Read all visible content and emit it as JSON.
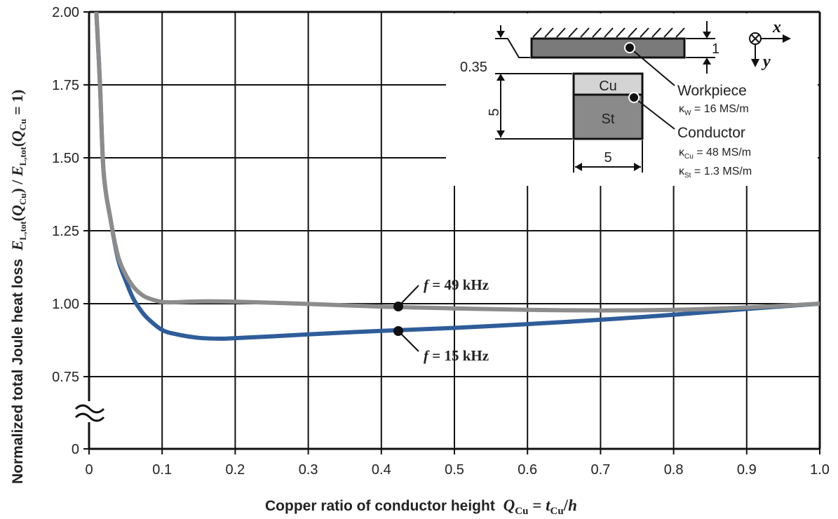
{
  "chart_data": {
    "type": "line",
    "title": "",
    "xlabel": "Copper ratio of conductor height",
    "xlabel_math": {
      "q": "Q",
      "q_sub": "Cu",
      "eq": " = ",
      "t": "t",
      "t_sub": "Cu",
      "slash": "/",
      "h": "h"
    },
    "ylabel": "Normalized total Joule heat loss",
    "ylabel_math": {
      "e1": "E",
      "e1_sub": "L,tot",
      "arg1_q": "Q",
      "arg1_sub": "Cu",
      "slash": " / ",
      "e2": "E",
      "e2_sub": "L,tot",
      "arg2_q": "Q",
      "arg2_sub": "Cu",
      "arg2_val": " = 1"
    },
    "xlim": [
      0,
      1.0
    ],
    "ylim_display": [
      0.75,
      2.0
    ],
    "y_axis_break": true,
    "x_ticks": [
      "0",
      "0.1",
      "0.2",
      "0.3",
      "0.4",
      "0.5",
      "0.6",
      "0.7",
      "0.8",
      "0.9",
      "1.0"
    ],
    "y_ticks": [
      "0",
      "0.75",
      "1.00",
      "1.25",
      "1.50",
      "1.75",
      "2.00"
    ],
    "grid": true,
    "series": [
      {
        "name": "f = 15 kHz",
        "label_f": "f",
        "label_rest": " = 15 kHz",
        "color": "#2f5d9a",
        "x": [
          0.01,
          0.015,
          0.02,
          0.03,
          0.04,
          0.05,
          0.06,
          0.07,
          0.08,
          0.1,
          0.12,
          0.15,
          0.18,
          0.2,
          0.25,
          0.3,
          0.4,
          0.5,
          0.6,
          0.7,
          0.8,
          0.9,
          1.0
        ],
        "y": [
          2.0,
          1.75,
          1.45,
          1.28,
          1.15,
          1.08,
          1.02,
          0.98,
          0.95,
          0.91,
          0.895,
          0.883,
          0.88,
          0.882,
          0.888,
          0.895,
          0.907,
          0.917,
          0.93,
          0.945,
          0.962,
          0.982,
          1.0
        ]
      },
      {
        "name": "f = 49 kHz",
        "label_f": "f",
        "label_rest": " = 49 kHz",
        "color": "#8c8c8c",
        "x": [
          0.01,
          0.015,
          0.02,
          0.03,
          0.04,
          0.05,
          0.06,
          0.07,
          0.08,
          0.1,
          0.12,
          0.15,
          0.2,
          0.3,
          0.4,
          0.5,
          0.6,
          0.7,
          0.8,
          0.9,
          1.0
        ],
        "y": [
          2.0,
          1.75,
          1.45,
          1.28,
          1.16,
          1.1,
          1.06,
          1.035,
          1.02,
          1.006,
          1.005,
          1.008,
          1.007,
          0.999,
          0.99,
          0.984,
          0.979,
          0.977,
          0.979,
          0.987,
          1.0
        ]
      }
    ],
    "inset": {
      "dim_gap": "0.35",
      "dim_height": "5",
      "dim_width": "5",
      "dim_workpiece": "1",
      "cu_label": "Cu",
      "st_label": "St",
      "workpiece_label": "Workpiece",
      "kappa_w": {
        "sym": "κ",
        "sub": "W",
        "val": " = 16 MS/m"
      },
      "conductor_label": "Conductor",
      "kappa_cu": {
        "sym": "κ",
        "sub": "Cu",
        "val": " = 48 MS/m"
      },
      "kappa_st": {
        "sym": "κ",
        "sub": "St",
        "val": " = 1.3 MS/m"
      },
      "axis_x": "x",
      "axis_y": "y",
      "fill_workpiece": "#7a7a7a",
      "fill_cu": "#d4d4d4",
      "fill_st": "#8a8a8a"
    }
  }
}
